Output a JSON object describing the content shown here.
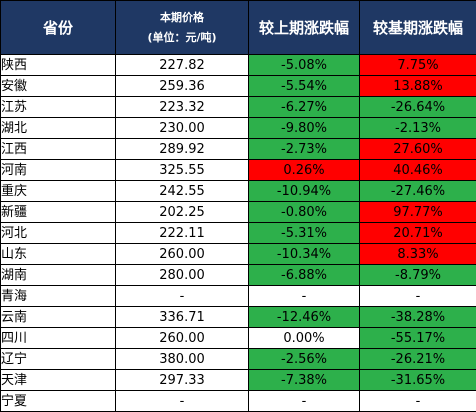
{
  "headers": {
    "province": "省份",
    "price_line1": "本期价格",
    "price_line2": "(单位：元/吨)",
    "mom": "较上期涨跌幅",
    "yoy": "较基期涨跌幅"
  },
  "colors": {
    "header_bg": "#1f3864",
    "increase": "#ff0000",
    "decrease": "#2db04b",
    "flat": "#ffffff"
  },
  "rows": [
    {
      "province": "陕西",
      "price": "227.82",
      "mom": "-5.08%",
      "yoy": "7.75%"
    },
    {
      "province": "安徽",
      "price": "259.36",
      "mom": "-5.54%",
      "yoy": "13.88%"
    },
    {
      "province": "江苏",
      "price": "223.32",
      "mom": "-6.27%",
      "yoy": "-26.64%"
    },
    {
      "province": "湖北",
      "price": "230.00",
      "mom": "-9.80%",
      "yoy": "-2.13%"
    },
    {
      "province": "江西",
      "price": "289.92",
      "mom": "-2.73%",
      "yoy": "27.60%"
    },
    {
      "province": "河南",
      "price": "325.55",
      "mom": "0.26%",
      "yoy": "40.46%"
    },
    {
      "province": "重庆",
      "price": "242.55",
      "mom": "-10.94%",
      "yoy": "-27.46%"
    },
    {
      "province": "新疆",
      "price": "202.25",
      "mom": "-0.80%",
      "yoy": "97.77%"
    },
    {
      "province": "河北",
      "price": "222.11",
      "mom": "-5.31%",
      "yoy": "20.71%"
    },
    {
      "province": "山东",
      "price": "260.00",
      "mom": "-10.34%",
      "yoy": "8.33%"
    },
    {
      "province": "湖南",
      "price": "280.00",
      "mom": "-6.88%",
      "yoy": "-8.79%"
    },
    {
      "province": "青海",
      "price": "-",
      "mom": "-",
      "yoy": "-"
    },
    {
      "province": "云南",
      "price": "336.71",
      "mom": "-12.46%",
      "yoy": "-38.28%"
    },
    {
      "province": "四川",
      "price": "260.00",
      "mom": "0.00%",
      "yoy": "-55.17%"
    },
    {
      "province": "辽宁",
      "price": "380.00",
      "mom": "-2.56%",
      "yoy": "-26.21%"
    },
    {
      "province": "天津",
      "price": "297.33",
      "mom": "-7.38%",
      "yoy": "-31.65%"
    },
    {
      "province": "宁夏",
      "price": "-",
      "mom": "-",
      "yoy": "-"
    }
  ]
}
